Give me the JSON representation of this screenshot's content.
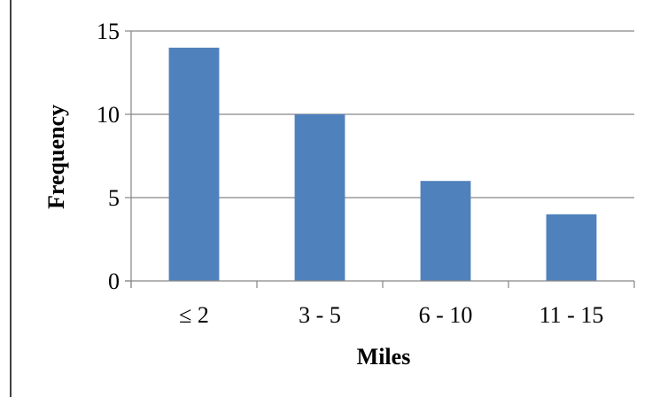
{
  "chart_data": {
    "type": "bar",
    "title": "",
    "xlabel": "Miles",
    "ylabel": "Frequency",
    "categories": [
      "≤ 2",
      "3 - 5",
      "6 - 10",
      "11 - 15"
    ],
    "values": [
      14,
      10,
      6,
      4
    ],
    "ylim": [
      0,
      15
    ],
    "yticks": [
      0,
      5,
      10,
      15
    ],
    "grid": true,
    "legend": "none",
    "bar_color": "#4F81BD",
    "grid_color": "#868686",
    "axis_color": "#868686"
  }
}
